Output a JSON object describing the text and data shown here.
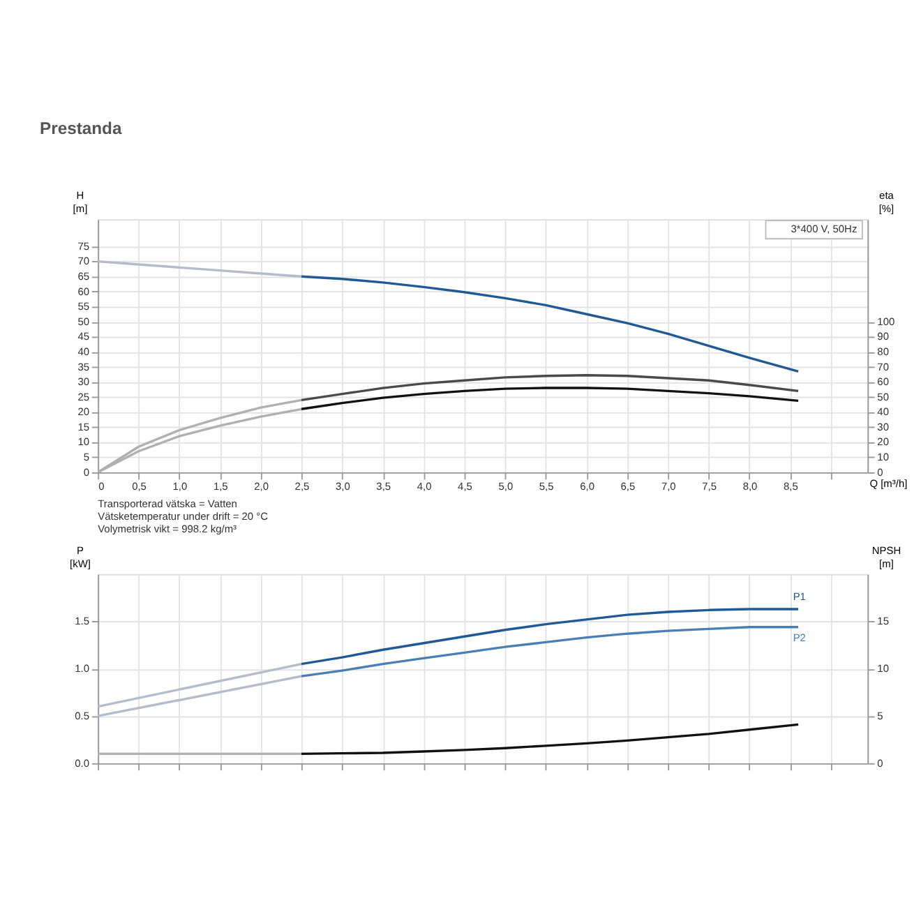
{
  "chart_data": [
    {
      "type": "line",
      "title": "Prestanda",
      "xlabel": "Q [m³/h]",
      "ylabel": "H [m]",
      "y2label": "eta [%]",
      "legend_title": "3*400 V, 50Hz",
      "grid": true,
      "xlim": [
        0,
        9.45
      ],
      "ylim": [
        0,
        84
      ],
      "y2lim": [
        0,
        168
      ],
      "xticks": [
        0,
        {
          "value": 0.5,
          "label": "0,5"
        },
        {
          "value": 1,
          "label": "1,0"
        },
        {
          "value": 1.5,
          "label": "1,5"
        },
        {
          "value": 2,
          "label": "2,0"
        },
        {
          "value": 2.5,
          "label": "2,5"
        },
        {
          "value": 3,
          "label": "3,0"
        },
        {
          "value": 3.5,
          "label": "3,5"
        },
        {
          "value": 4,
          "label": "4,0"
        },
        {
          "value": 4.5,
          "label": "4,5"
        },
        {
          "value": 5,
          "label": "5,0"
        },
        {
          "value": 5.5,
          "label": "5,5"
        },
        {
          "value": 6,
          "label": "6,0"
        },
        {
          "value": 6.5,
          "label": "6,5"
        },
        {
          "value": 7,
          "label": "7,0"
        },
        {
          "value": 7.5,
          "label": "7,5"
        },
        {
          "value": 8,
          "label": "8,0"
        },
        {
          "value": 8.5,
          "label": "8,5"
        },
        {
          "value": 9,
          "label": null
        }
      ],
      "yticks": [
        0,
        5,
        10,
        15,
        20,
        25,
        30,
        35,
        40,
        45,
        50,
        55,
        60,
        65,
        70,
        75
      ],
      "y2ticks": [
        0,
        10,
        20,
        30,
        40,
        50,
        60,
        70,
        80,
        90,
        100
      ],
      "series": [
        {
          "color": "#b4bccb",
          "x": [
            0,
            0.5,
            1,
            1.5,
            2,
            2.5
          ],
          "values": [
            70,
            69,
            68,
            67,
            66,
            65
          ]
        },
        {
          "color": "#1f5a96",
          "x": [
            2.5,
            3,
            3.5,
            4,
            4.5,
            5,
            5.5,
            6,
            6.5,
            7,
            7.5,
            8,
            8.6
          ],
          "values": [
            65,
            64.2,
            63,
            61.5,
            59.8,
            57.8,
            55.5,
            52.5,
            49.5,
            46,
            42,
            38,
            33.5
          ]
        },
        {
          "color": "#b0b0b0",
          "axis": "y2",
          "x": [
            0,
            0.5,
            1,
            1.5,
            2,
            2.5
          ],
          "values": [
            0,
            17,
            28,
            36,
            43,
            48
          ]
        },
        {
          "color": "#4a4a4a",
          "axis": "y2",
          "x": [
            2.5,
            3,
            3.5,
            4,
            4.5,
            5,
            5.5,
            6,
            6.5,
            7,
            7.5,
            8,
            8.6
          ],
          "values": [
            48,
            52,
            56,
            59,
            61,
            63,
            64,
            64.5,
            64,
            62.5,
            61,
            58,
            54
          ]
        },
        {
          "color": "#b0b0b0",
          "axis": "y2",
          "x": [
            0,
            0.5,
            1,
            1.5,
            2,
            2.5
          ],
          "values": [
            0,
            14,
            24,
            31,
            37,
            42
          ]
        },
        {
          "color": "#111111",
          "axis": "y2",
          "x": [
            2.5,
            3,
            3.5,
            4,
            4.5,
            5,
            5.5,
            6,
            6.5,
            7,
            7.5,
            8,
            8.6
          ],
          "values": [
            42,
            46,
            49.5,
            52,
            54,
            55.5,
            56,
            56,
            55.5,
            54,
            52.5,
            50.5,
            47.5
          ]
        }
      ],
      "annotations": [
        "Transporterad vätska = Vatten",
        "Vätsketemperatur under drift = 20 °C",
        "Volymetrisk vikt = 998.2 kg/m³"
      ]
    },
    {
      "type": "line",
      "ylabel": "P [kW]",
      "y2label": "NPSH [m]",
      "grid": true,
      "tick_labels": "y",
      "xlim": [
        0,
        9.45
      ],
      "ylim": [
        0,
        2.0
      ],
      "y2lim": [
        0,
        20
      ],
      "xticks": [
        0,
        0.5,
        1,
        1.5,
        2,
        2.5,
        3,
        3.5,
        4,
        4.5,
        5,
        5.5,
        6,
        6.5,
        7,
        7.5,
        8,
        8.5,
        9
      ],
      "yticks": [
        {
          "value": 0,
          "label": "0.0"
        },
        0.5,
        {
          "value": 1,
          "label": "1.0"
        },
        1.5
      ],
      "y2ticks": [
        0,
        5,
        10,
        15
      ],
      "series": [
        {
          "color": "#b4bccb",
          "x": [
            0,
            2.5
          ],
          "values": [
            0.6,
            1.05
          ]
        },
        {
          "name": "P1",
          "color": "#1f5a96",
          "x": [
            2.5,
            3,
            3.5,
            4,
            4.5,
            5,
            5.5,
            6,
            6.5,
            7,
            7.5,
            8,
            8.6
          ],
          "values": [
            1.05,
            1.12,
            1.2,
            1.27,
            1.34,
            1.41,
            1.47,
            1.52,
            1.57,
            1.6,
            1.62,
            1.63,
            1.63
          ]
        },
        {
          "color": "#b4bccb",
          "x": [
            0,
            2.5
          ],
          "values": [
            0.5,
            0.92
          ]
        },
        {
          "name": "P2",
          "color": "#4a7fb5",
          "x": [
            2.5,
            3,
            3.5,
            4,
            4.5,
            5,
            5.5,
            6,
            6.5,
            7,
            7.5,
            8,
            8.6
          ],
          "values": [
            0.92,
            0.98,
            1.05,
            1.11,
            1.17,
            1.23,
            1.28,
            1.33,
            1.37,
            1.4,
            1.42,
            1.44,
            1.44
          ]
        },
        {
          "color": "#b0b0b0",
          "axis": "y2",
          "x": [
            0,
            2.5
          ],
          "values": [
            1.0,
            1.0
          ]
        },
        {
          "color": "#111111",
          "axis": "y2",
          "x": [
            2.5,
            3,
            3.5,
            4,
            4.5,
            5,
            5.5,
            6,
            6.5,
            7,
            7.5,
            8,
            8.6
          ],
          "values": [
            1.0,
            1.05,
            1.1,
            1.25,
            1.4,
            1.6,
            1.85,
            2.1,
            2.4,
            2.75,
            3.1,
            3.55,
            4.1
          ]
        }
      ]
    }
  ]
}
